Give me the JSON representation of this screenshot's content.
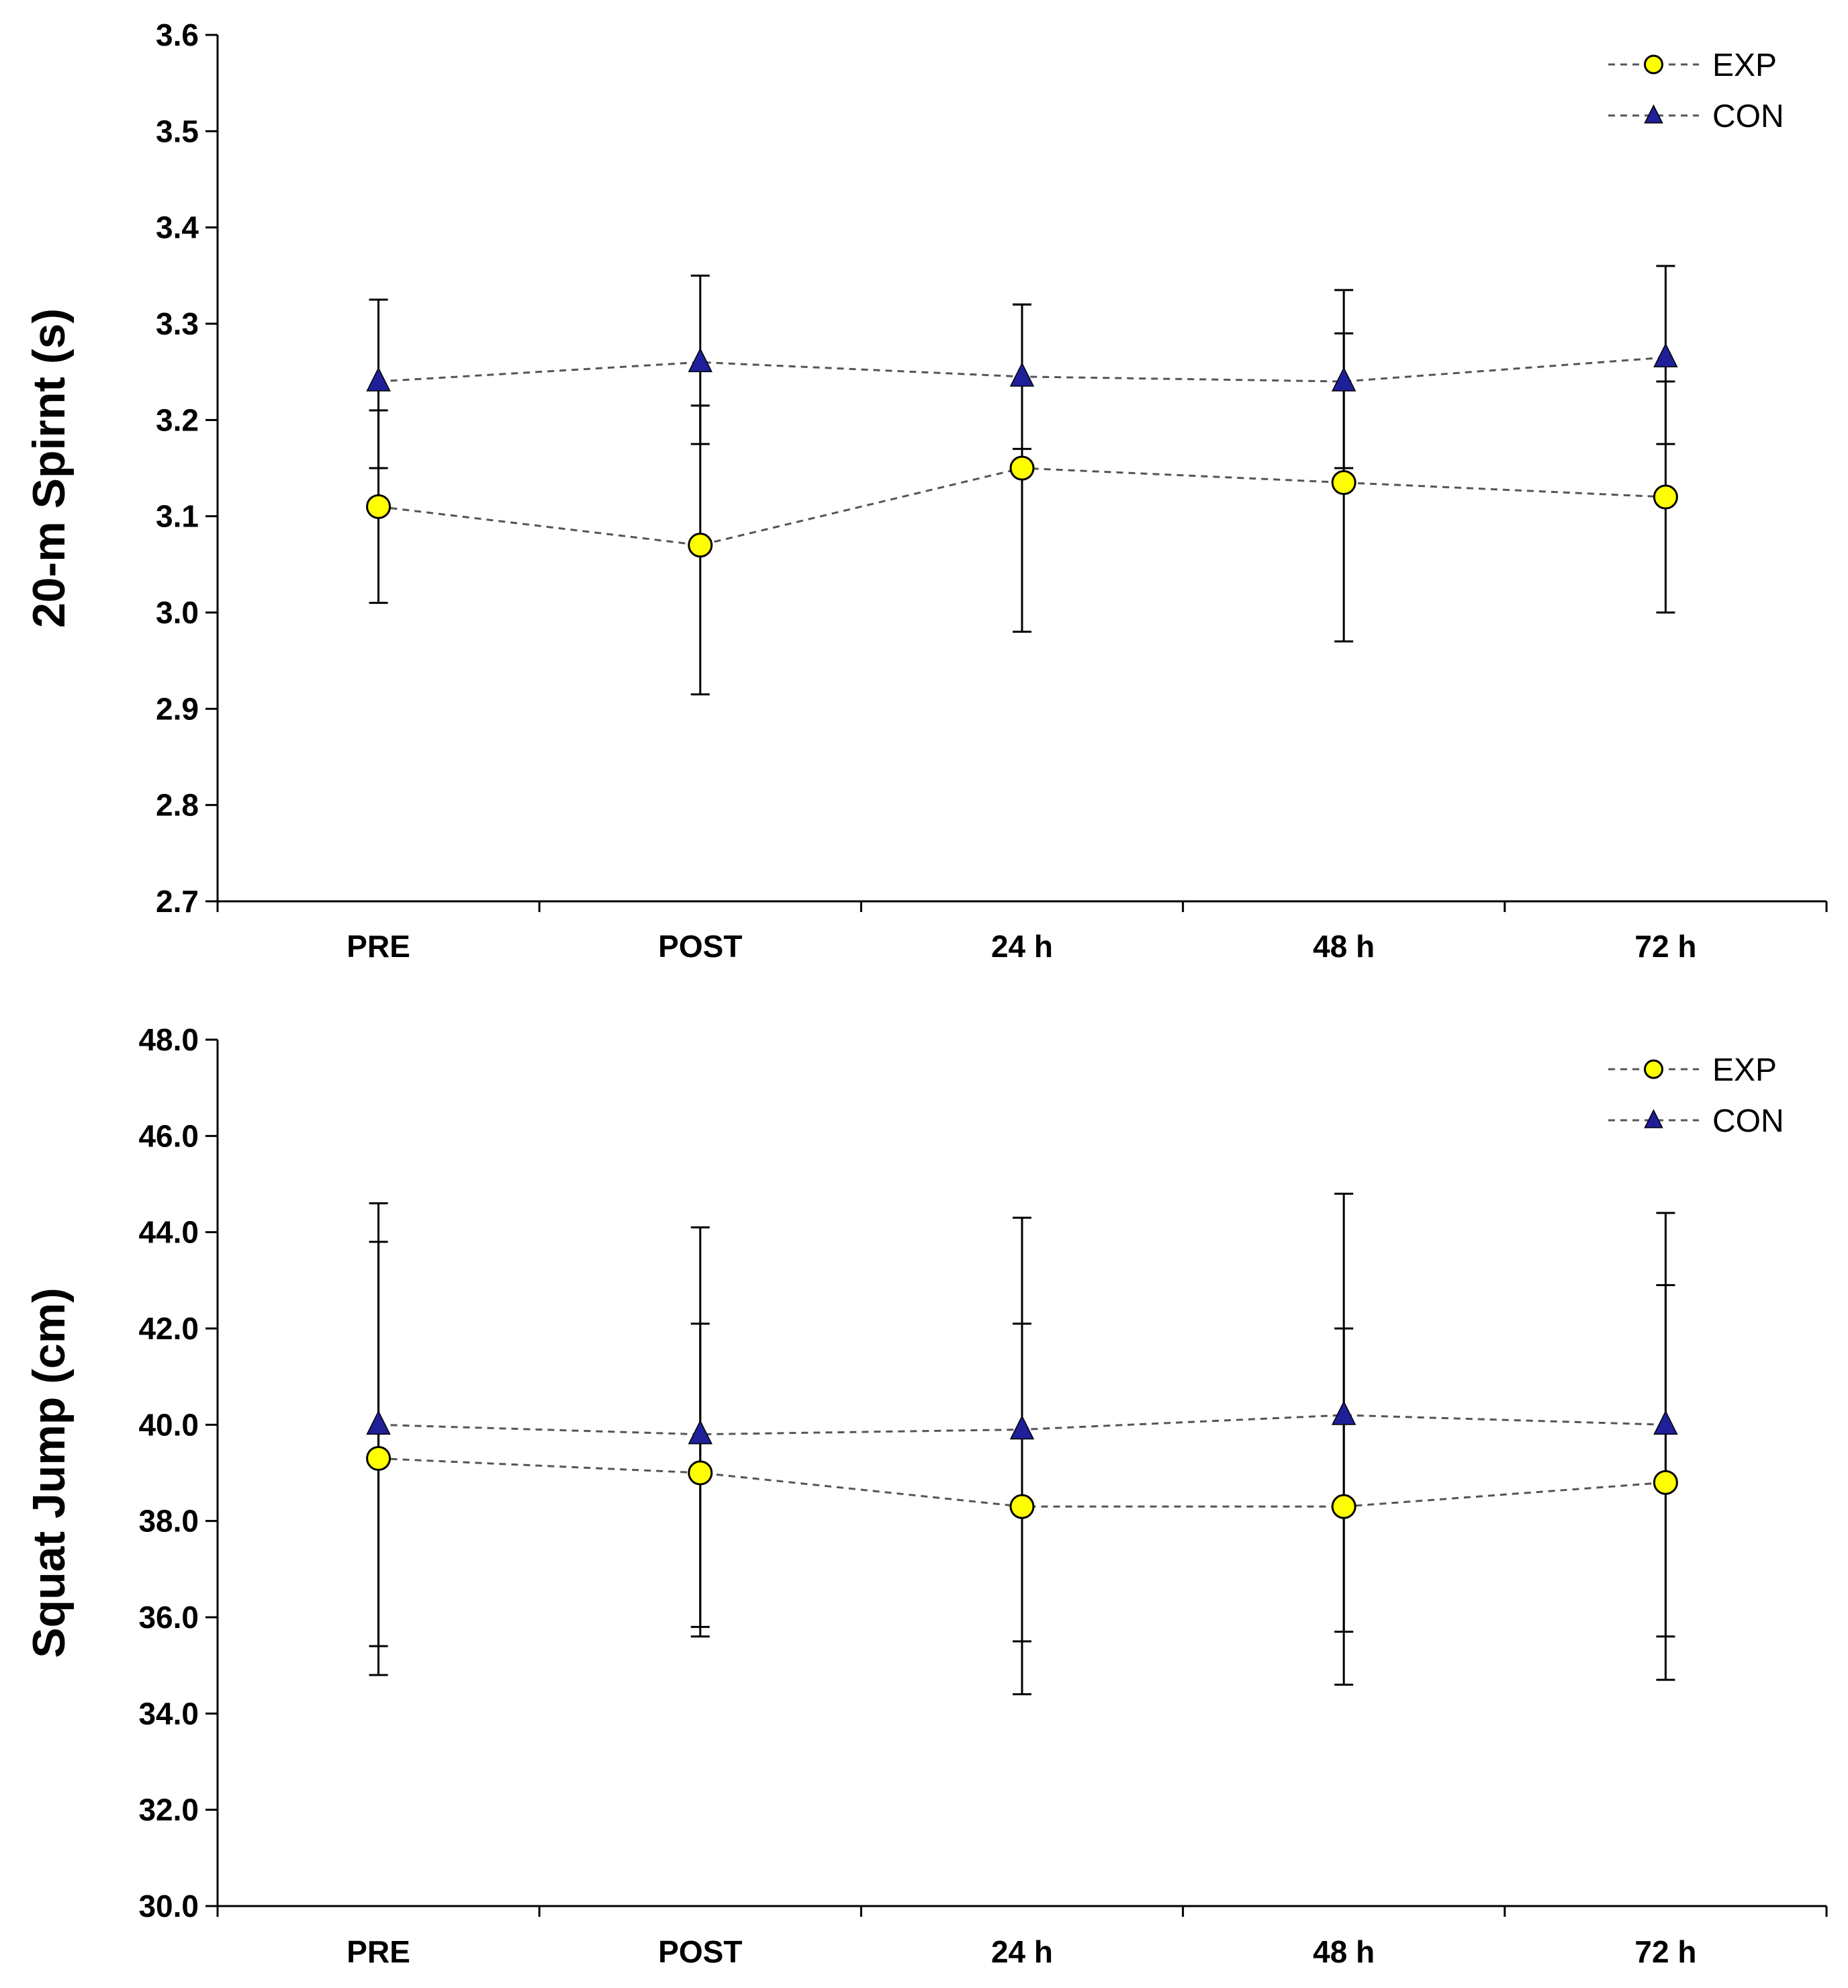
{
  "chart_data": [
    {
      "type": "line",
      "title": "",
      "xlabel": "",
      "ylabel": "20-m Spirnt (s)",
      "categories": [
        "PRE",
        "POST",
        "24 h",
        "48 h",
        "72 h"
      ],
      "ylim": [
        2.7,
        3.6
      ],
      "yticks": [
        "2.7",
        "2.8",
        "2.9",
        "3.0",
        "3.1",
        "3.2",
        "3.3",
        "3.4",
        "3.5",
        "3.6"
      ],
      "legend_position": "top-right",
      "series": [
        {
          "name": "EXP",
          "marker": "circle",
          "color": "#ffff00",
          "values": [
            3.11,
            3.07,
            3.15,
            3.135,
            3.12
          ],
          "err_low": [
            3.01,
            2.915,
            2.98,
            2.97,
            3.0
          ],
          "err_high": [
            3.21,
            3.215,
            3.32,
            3.29,
            3.24
          ]
        },
        {
          "name": "CON",
          "marker": "triangle",
          "color": "#1f1f9a",
          "values": [
            3.24,
            3.26,
            3.245,
            3.24,
            3.265
          ],
          "err_low": [
            3.15,
            3.175,
            3.17,
            3.15,
            3.175
          ],
          "err_high": [
            3.325,
            3.35,
            3.32,
            3.335,
            3.36
          ]
        }
      ]
    },
    {
      "type": "line",
      "title": "",
      "xlabel": "",
      "ylabel": "Squat Jump (cm)",
      "categories": [
        "PRE",
        "POST",
        "24 h",
        "48 h",
        "72 h"
      ],
      "ylim": [
        30.0,
        48.0
      ],
      "yticks": [
        "30.0",
        "32.0",
        "34.0",
        "36.0",
        "38.0",
        "40.0",
        "42.0",
        "44.0",
        "46.0",
        "48.0"
      ],
      "legend_position": "top-right",
      "series": [
        {
          "name": "EXP",
          "marker": "circle",
          "color": "#ffff00",
          "values": [
            39.3,
            39.0,
            38.3,
            38.3,
            38.8
          ],
          "err_low": [
            34.8,
            35.8,
            34.4,
            34.6,
            34.7
          ],
          "err_high": [
            43.8,
            42.1,
            42.1,
            42.0,
            42.9
          ]
        },
        {
          "name": "CON",
          "marker": "triangle",
          "color": "#1f1f9a",
          "values": [
            40.0,
            39.8,
            39.9,
            40.2,
            40.0
          ],
          "err_low": [
            35.4,
            35.6,
            35.5,
            35.7,
            35.6
          ],
          "err_high": [
            44.6,
            44.1,
            44.3,
            44.8,
            44.4
          ]
        }
      ]
    }
  ]
}
